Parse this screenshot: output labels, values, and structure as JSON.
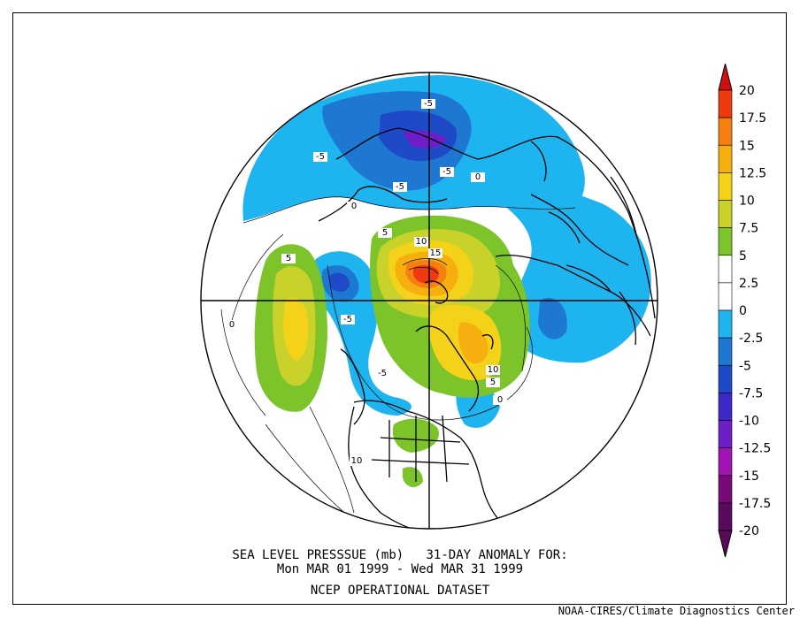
{
  "title": {
    "line1": "SEA LEVEL PRESSSUE (mb)   31-DAY ANOMALY FOR:",
    "line2": "Mon MAR 01 1999 - Wed MAR 31 1999",
    "line3": "NCEP OPERATIONAL DATASET"
  },
  "credit": "NOAA-CIRES/Climate Diagnostics Center",
  "colorbar": {
    "levels": [
      {
        "label": "20",
        "color": "#d01010"
      },
      {
        "label": "17.5",
        "color": "#ee3a10"
      },
      {
        "label": "15",
        "color": "#f57f10"
      },
      {
        "label": "12.5",
        "color": "#f5b010"
      },
      {
        "label": "10",
        "color": "#f5d21a"
      },
      {
        "label": "7.5",
        "color": "#c8d22a"
      },
      {
        "label": "5",
        "color": "#7cc42a"
      },
      {
        "label": "2.5",
        "color": "#ffffff"
      },
      {
        "label": "0",
        "color": "#ffffff"
      },
      {
        "label": "-2.5",
        "color": "#1eb4f0"
      },
      {
        "label": "-5",
        "color": "#1e78d2"
      },
      {
        "label": "-7.5",
        "color": "#1e4ac8"
      },
      {
        "label": "-10",
        "color": "#3c28c8"
      },
      {
        "label": "-12.5",
        "color": "#6e1ec8"
      },
      {
        "label": "-15",
        "color": "#a014b4"
      },
      {
        "label": "-17.5",
        "color": "#780a78"
      },
      {
        "label": "-20",
        "color": "#5a0a5a"
      }
    ],
    "top_cap_color": "#d01010",
    "bottom_cap_color": "#5a0a5a"
  },
  "contour_labels": [
    "-5",
    "-5",
    "-5",
    "-5",
    "-5",
    "-5",
    "0",
    "0",
    "0",
    "5",
    "5",
    "10",
    "15",
    "10",
    "5",
    "10",
    "0"
  ]
}
